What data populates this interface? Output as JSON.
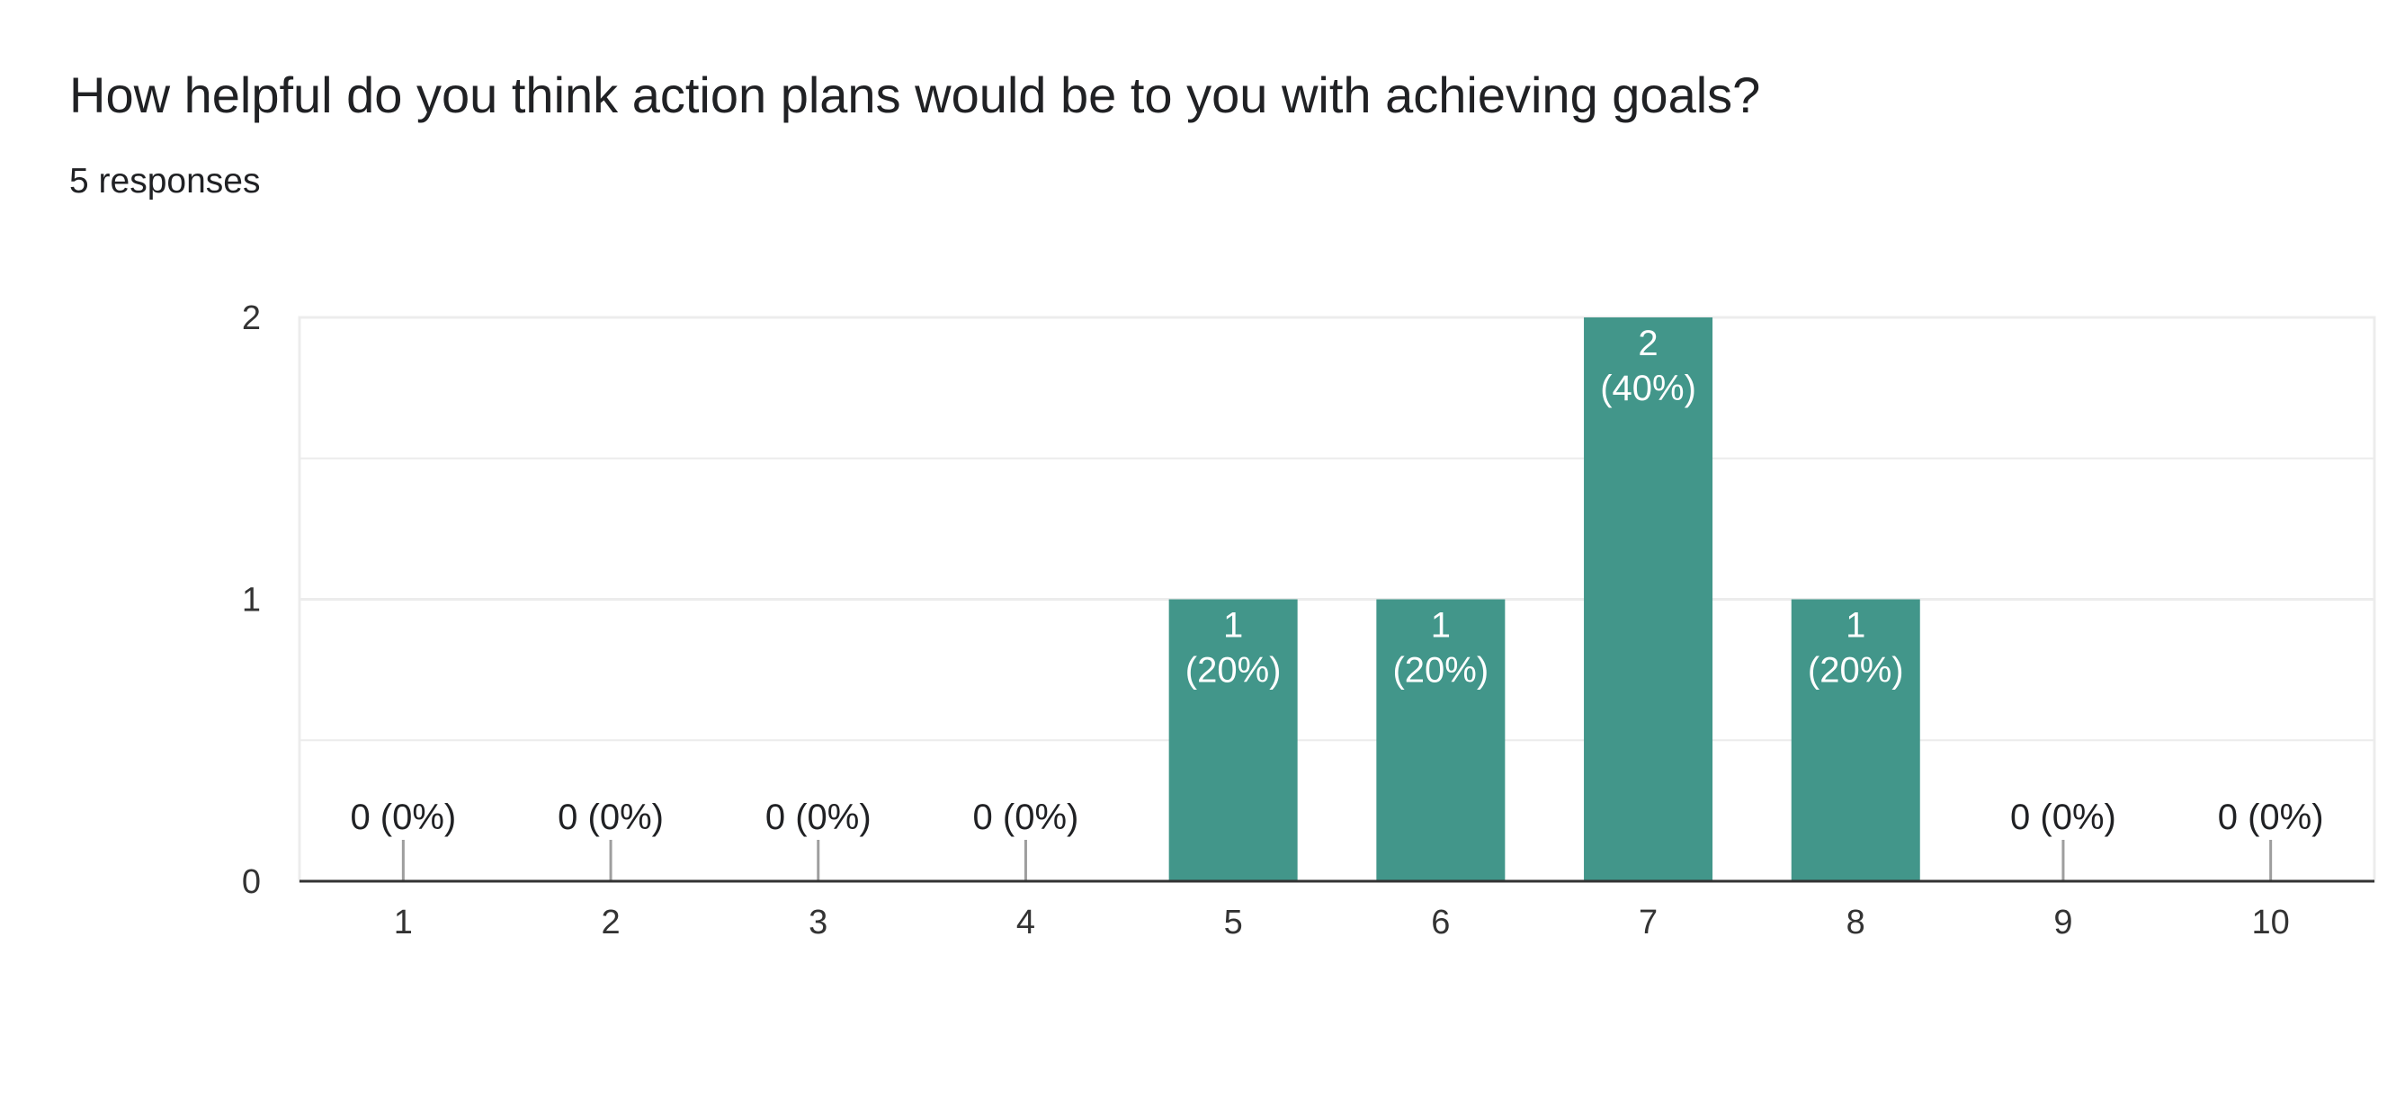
{
  "question": {
    "title": "How helpful do you think action plans would be to you with achieving goals?",
    "responses": "5 responses"
  },
  "colors": {
    "bar": "#42968a",
    "gridline": "#ececec",
    "axis": "#333333",
    "zero_tick": "#9e9e9e",
    "label_outside": "#202124",
    "label_inside": "#ffffff",
    "tick_label": "#333333"
  },
  "chart_data": {
    "type": "bar",
    "categories": [
      "1",
      "2",
      "3",
      "4",
      "5",
      "6",
      "7",
      "8",
      "9",
      "10"
    ],
    "values": [
      0,
      0,
      0,
      0,
      1,
      1,
      2,
      1,
      0,
      0
    ],
    "value_labels": [
      [
        "0 (0%)"
      ],
      [
        "0 (0%)"
      ],
      [
        "0 (0%)"
      ],
      [
        "0 (0%)"
      ],
      [
        "1",
        "(20%)"
      ],
      [
        "1",
        "(20%)"
      ],
      [
        "2",
        "(40%)"
      ],
      [
        "1",
        "(20%)"
      ],
      [
        "0 (0%)"
      ],
      [
        "0 (0%)"
      ]
    ],
    "y_ticks": [
      "0",
      "1",
      "2"
    ],
    "ylim": [
      0,
      2
    ],
    "grid": true,
    "title": "",
    "xlabel": "",
    "ylabel": ""
  }
}
